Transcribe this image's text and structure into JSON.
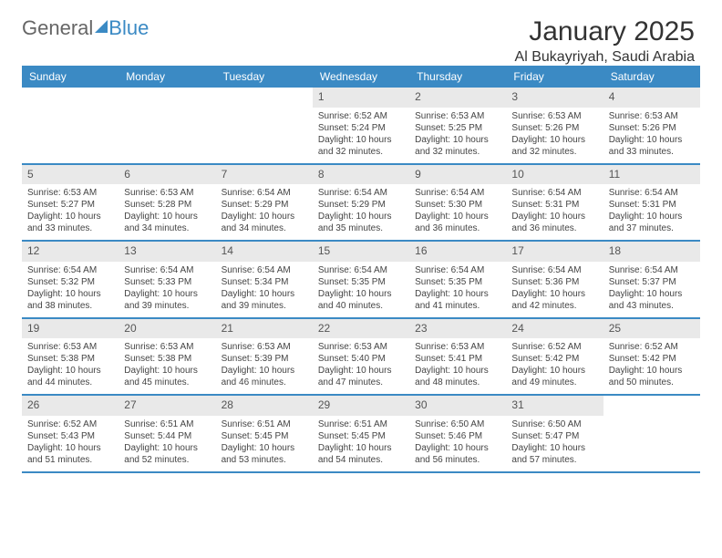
{
  "logo": {
    "general": "General",
    "blue": "Blue"
  },
  "title": "January 2025",
  "location": "Al Bukayriyah, Saudi Arabia",
  "colors": {
    "accent": "#3b8ac4",
    "daynum_bg": "#e9e9e9",
    "text": "#333333",
    "background": "#ffffff"
  },
  "font": {
    "family": "Arial",
    "title_pt": 30,
    "location_pt": 16,
    "header_pt": 12,
    "daynum_pt": 12,
    "body_pt": 10
  },
  "day_headers": [
    "Sunday",
    "Monday",
    "Tuesday",
    "Wednesday",
    "Thursday",
    "Friday",
    "Saturday"
  ],
  "weeks": [
    [
      null,
      null,
      null,
      {
        "n": "1",
        "sr": "6:52 AM",
        "ss": "5:24 PM",
        "dl": "10 hours and 32 minutes."
      },
      {
        "n": "2",
        "sr": "6:53 AM",
        "ss": "5:25 PM",
        "dl": "10 hours and 32 minutes."
      },
      {
        "n": "3",
        "sr": "6:53 AM",
        "ss": "5:26 PM",
        "dl": "10 hours and 32 minutes."
      },
      {
        "n": "4",
        "sr": "6:53 AM",
        "ss": "5:26 PM",
        "dl": "10 hours and 33 minutes."
      }
    ],
    [
      {
        "n": "5",
        "sr": "6:53 AM",
        "ss": "5:27 PM",
        "dl": "10 hours and 33 minutes."
      },
      {
        "n": "6",
        "sr": "6:53 AM",
        "ss": "5:28 PM",
        "dl": "10 hours and 34 minutes."
      },
      {
        "n": "7",
        "sr": "6:54 AM",
        "ss": "5:29 PM",
        "dl": "10 hours and 34 minutes."
      },
      {
        "n": "8",
        "sr": "6:54 AM",
        "ss": "5:29 PM",
        "dl": "10 hours and 35 minutes."
      },
      {
        "n": "9",
        "sr": "6:54 AM",
        "ss": "5:30 PM",
        "dl": "10 hours and 36 minutes."
      },
      {
        "n": "10",
        "sr": "6:54 AM",
        "ss": "5:31 PM",
        "dl": "10 hours and 36 minutes."
      },
      {
        "n": "11",
        "sr": "6:54 AM",
        "ss": "5:31 PM",
        "dl": "10 hours and 37 minutes."
      }
    ],
    [
      {
        "n": "12",
        "sr": "6:54 AM",
        "ss": "5:32 PM",
        "dl": "10 hours and 38 minutes."
      },
      {
        "n": "13",
        "sr": "6:54 AM",
        "ss": "5:33 PM",
        "dl": "10 hours and 39 minutes."
      },
      {
        "n": "14",
        "sr": "6:54 AM",
        "ss": "5:34 PM",
        "dl": "10 hours and 39 minutes."
      },
      {
        "n": "15",
        "sr": "6:54 AM",
        "ss": "5:35 PM",
        "dl": "10 hours and 40 minutes."
      },
      {
        "n": "16",
        "sr": "6:54 AM",
        "ss": "5:35 PM",
        "dl": "10 hours and 41 minutes."
      },
      {
        "n": "17",
        "sr": "6:54 AM",
        "ss": "5:36 PM",
        "dl": "10 hours and 42 minutes."
      },
      {
        "n": "18",
        "sr": "6:54 AM",
        "ss": "5:37 PM",
        "dl": "10 hours and 43 minutes."
      }
    ],
    [
      {
        "n": "19",
        "sr": "6:53 AM",
        "ss": "5:38 PM",
        "dl": "10 hours and 44 minutes."
      },
      {
        "n": "20",
        "sr": "6:53 AM",
        "ss": "5:38 PM",
        "dl": "10 hours and 45 minutes."
      },
      {
        "n": "21",
        "sr": "6:53 AM",
        "ss": "5:39 PM",
        "dl": "10 hours and 46 minutes."
      },
      {
        "n": "22",
        "sr": "6:53 AM",
        "ss": "5:40 PM",
        "dl": "10 hours and 47 minutes."
      },
      {
        "n": "23",
        "sr": "6:53 AM",
        "ss": "5:41 PM",
        "dl": "10 hours and 48 minutes."
      },
      {
        "n": "24",
        "sr": "6:52 AM",
        "ss": "5:42 PM",
        "dl": "10 hours and 49 minutes."
      },
      {
        "n": "25",
        "sr": "6:52 AM",
        "ss": "5:42 PM",
        "dl": "10 hours and 50 minutes."
      }
    ],
    [
      {
        "n": "26",
        "sr": "6:52 AM",
        "ss": "5:43 PM",
        "dl": "10 hours and 51 minutes."
      },
      {
        "n": "27",
        "sr": "6:51 AM",
        "ss": "5:44 PM",
        "dl": "10 hours and 52 minutes."
      },
      {
        "n": "28",
        "sr": "6:51 AM",
        "ss": "5:45 PM",
        "dl": "10 hours and 53 minutes."
      },
      {
        "n": "29",
        "sr": "6:51 AM",
        "ss": "5:45 PM",
        "dl": "10 hours and 54 minutes."
      },
      {
        "n": "30",
        "sr": "6:50 AM",
        "ss": "5:46 PM",
        "dl": "10 hours and 56 minutes."
      },
      {
        "n": "31",
        "sr": "6:50 AM",
        "ss": "5:47 PM",
        "dl": "10 hours and 57 minutes."
      },
      null
    ]
  ],
  "labels": {
    "sunrise": "Sunrise:",
    "sunset": "Sunset:",
    "daylight": "Daylight:"
  }
}
